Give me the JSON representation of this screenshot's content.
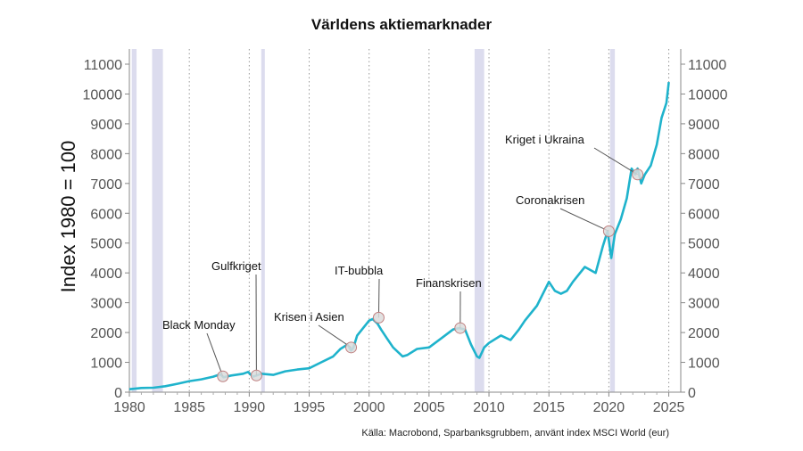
{
  "chart_data": {
    "type": "line",
    "title": "Världens aktiemarknader",
    "ylabel": "Index 1980 = 100",
    "xlabel": "",
    "source": "Källa: Macrobond, Sparbanksgrubbem, använt index MSCI World (eur)",
    "xlim": [
      1980,
      2026
    ],
    "ylim": [
      0,
      11000
    ],
    "x_ticks": [
      "1980",
      "1985",
      "1990",
      "1995",
      "2000",
      "2005",
      "2010",
      "2015",
      "2020",
      "2025"
    ],
    "y_ticks": [
      "0",
      "1000",
      "2000",
      "3000",
      "4000",
      "5000",
      "6000",
      "7000",
      "8000",
      "9000",
      "10000",
      "11000"
    ],
    "line_color": "#1fb3cc",
    "recession_color": "#dcdcee",
    "grid": "vertical dotted",
    "recessions": [
      [
        1980.2,
        1980.6
      ],
      [
        1981.9,
        1982.8
      ],
      [
        1991.0,
        1991.3
      ],
      [
        2008.8,
        2009.6
      ],
      [
        2020.1,
        2020.5
      ]
    ],
    "series": [
      {
        "x": [
          1980.0,
          1981.0,
          1982.0,
          1983.0,
          1984.0,
          1985.0,
          1986.0,
          1987.0,
          1987.6,
          1987.85,
          1988.5,
          1989.5,
          1989.9,
          1990.3,
          1990.6,
          1991.0,
          1992.0,
          1993.0,
          1994.0,
          1995.0,
          1996.0,
          1997.0,
          1997.6,
          1998.2,
          1998.5,
          1998.7,
          1999.0,
          1999.6,
          2000.0,
          2000.3,
          2000.7,
          2001.0,
          2001.5,
          2002.0,
          2002.8,
          2003.2,
          2004.0,
          2005.0,
          2006.0,
          2007.0,
          2007.5,
          2008.0,
          2008.5,
          2009.0,
          2009.2,
          2009.6,
          2010.0,
          2011.0,
          2011.8,
          2012.5,
          2013.0,
          2014.0,
          2015.0,
          2015.5,
          2016.0,
          2016.5,
          2017.0,
          2018.0,
          2018.9,
          2019.5,
          2019.9,
          2020.2,
          2020.5,
          2021.0,
          2021.5,
          2021.9,
          2022.2,
          2022.4,
          2022.7,
          2023.0,
          2023.5,
          2024.0,
          2024.4,
          2024.8,
          2025.0
        ],
        "y": [
          100,
          140,
          150,
          200,
          280,
          370,
          430,
          520,
          600,
          500,
          560,
          620,
          680,
          520,
          560,
          620,
          580,
          700,
          760,
          800,
          1000,
          1200,
          1450,
          1600,
          1400,
          1500,
          1900,
          2200,
          2400,
          2450,
          2300,
          2100,
          1800,
          1500,
          1200,
          1250,
          1450,
          1500,
          1800,
          2100,
          2150,
          2100,
          1600,
          1200,
          1150,
          1500,
          1650,
          1900,
          1750,
          2100,
          2400,
          2900,
          3700,
          3400,
          3300,
          3400,
          3700,
          4200,
          4000,
          4900,
          5400,
          4500,
          5300,
          5800,
          6500,
          7500,
          7300,
          7500,
          7000,
          7300,
          7600,
          8300,
          9200,
          9700,
          10400
        ]
      }
    ],
    "annotations": [
      {
        "label": "Black Monday",
        "x": 1987.8,
        "y": 530
      },
      {
        "label": "Gulfkriget",
        "x": 1990.6,
        "y": 560
      },
      {
        "label": "Krisen i Asien",
        "x": 1998.5,
        "y": 1500
      },
      {
        "label": "IT-bubbla",
        "x": 2000.8,
        "y": 2500
      },
      {
        "label": "Finanskrisen",
        "x": 2007.6,
        "y": 2150
      },
      {
        "label": "Coronakrisen",
        "x": 2020.0,
        "y": 5400
      },
      {
        "label": "Kriget i Ukraina",
        "x": 2022.4,
        "y": 7300
      }
    ]
  }
}
